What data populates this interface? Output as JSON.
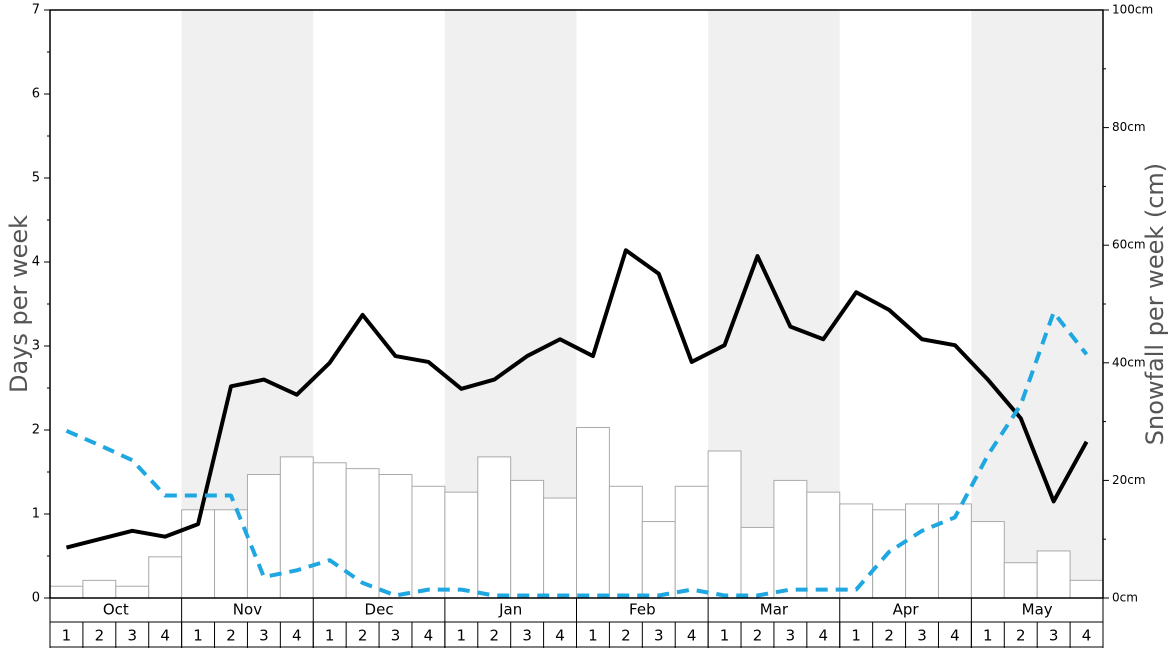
{
  "chart_data": {
    "type": "bar-line",
    "ylabel": "Days per week",
    "y2label": "Snowfall per week (cm)",
    "months": [
      "Oct",
      "Nov",
      "Dec",
      "Jan",
      "Feb",
      "Mar",
      "Apr",
      "May"
    ],
    "categories": [
      "1",
      "2",
      "3",
      "4",
      "1",
      "2",
      "3",
      "4",
      "1",
      "2",
      "3",
      "4",
      "1",
      "2",
      "3",
      "4",
      "1",
      "2",
      "3",
      "4",
      "1",
      "2",
      "3",
      "4",
      "1",
      "2",
      "3",
      "4",
      "1",
      "2",
      "3",
      "4"
    ],
    "ylim": [
      0,
      7
    ],
    "yticks": [
      0,
      1,
      2,
      3,
      4,
      5,
      6,
      7
    ],
    "y2lim": [
      0,
      100
    ],
    "y2ticks": [
      {
        "value": 0,
        "label": "0cm"
      },
      {
        "value": 20,
        "label": "20cm"
      },
      {
        "value": 40,
        "label": "40cm"
      },
      {
        "value": 60,
        "label": "60cm"
      },
      {
        "value": 80,
        "label": "80cm"
      },
      {
        "value": 100,
        "label": "100cm"
      }
    ],
    "series": [
      {
        "type": "bar",
        "axis": "y2",
        "color": "#ffffff",
        "values": [
          2,
          3,
          2,
          7,
          15,
          15,
          21,
          24,
          23,
          22,
          21,
          19,
          18,
          24,
          20,
          17,
          29,
          19,
          13,
          19,
          25,
          12,
          20,
          18,
          16,
          15,
          16,
          16,
          13,
          6,
          8,
          3
        ]
      },
      {
        "type": "line",
        "axis": "y",
        "color": "#000000",
        "values": [
          0.6,
          0.7,
          0.8,
          0.73,
          0.88,
          2.52,
          2.6,
          2.42,
          2.8,
          3.37,
          2.88,
          2.81,
          2.49,
          2.6,
          2.88,
          3.08,
          2.88,
          4.14,
          3.86,
          2.81,
          3.01,
          4.07,
          3.23,
          3.08,
          3.64,
          3.43,
          3.08,
          3.01,
          2.6,
          2.14,
          1.15,
          1.86
        ]
      },
      {
        "type": "line",
        "axis": "y",
        "color": "#1ea7e1",
        "dashed": true,
        "values": [
          1.99,
          1.82,
          1.64,
          1.22,
          1.22,
          1.22,
          0.25,
          0.33,
          0.45,
          0.18,
          0.03,
          0.1,
          0.1,
          0.03,
          0.03,
          0.03,
          0.03,
          0.03,
          0.03,
          0.1,
          0.03,
          0.03,
          0.1,
          0.1,
          0.1,
          0.55,
          0.8,
          0.96,
          1.7,
          2.3,
          3.4,
          2.9
        ]
      }
    ]
  }
}
